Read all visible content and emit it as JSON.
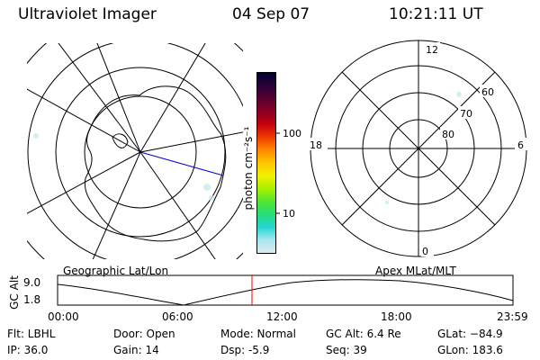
{
  "header": {
    "title": "Ultraviolet Imager",
    "date": "04 Sep 07",
    "time": "10:21:11 UT"
  },
  "colorbar": {
    "label": "photon cm⁻²s⁻¹",
    "tick_labels": [
      "100",
      "10"
    ],
    "colors": [
      "#000033",
      "#2a0038",
      "#5a0030",
      "#8a0024",
      "#c8000c",
      "#f03a00",
      "#ff8a00",
      "#ffc400",
      "#f2f200",
      "#a8f000",
      "#50e630",
      "#28dc78",
      "#22d6d6",
      "#a8e6ee",
      "#dceaee"
    ]
  },
  "left_map": {
    "label": "Geographic Lat/Lon"
  },
  "right_map": {
    "label": "Apex MLat/MLT",
    "mlt_labels": [
      "12",
      "18",
      "6",
      "0"
    ],
    "lat_labels": [
      "60",
      "70",
      "80"
    ]
  },
  "timeline": {
    "ylabel": "GC Alt",
    "ytick_labels": [
      "9.0",
      "1.8"
    ],
    "xtick_labels": [
      "00:00",
      "06:00",
      "12:00",
      "18:00",
      "23:59"
    ],
    "current_marker_color": "#ff0000"
  },
  "status": {
    "flt": "Flt: LBHL",
    "ip": "IP: 36.0",
    "door": "Door: Open",
    "gain": "Gain: 14",
    "mode": "Mode: Normal",
    "dsp": "Dsp:   -5.9",
    "gc_alt": "GC Alt: 6.4 Re",
    "seq": "Seq: 39",
    "glat": "GLat: −84.9",
    "glon": "GLon: 183.6"
  }
}
